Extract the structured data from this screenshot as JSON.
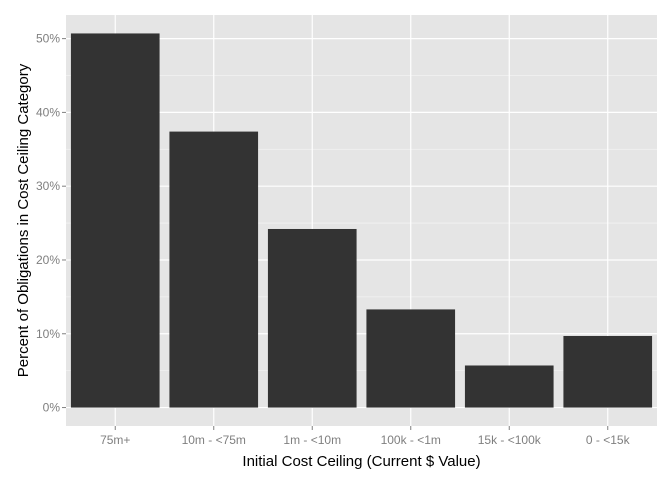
{
  "chart_data": {
    "type": "bar",
    "title": "",
    "xlabel": "Initial Cost Ceiling (Current $ Value)",
    "ylabel": "Percent of Obligations in Cost Ceiling Category",
    "categories": [
      "75m+",
      "10m - <75m",
      "1m - <10m",
      "100k - <1m",
      "15k - <100k",
      "0 - <15k"
    ],
    "values": [
      50.7,
      37.4,
      24.2,
      13.3,
      5.7,
      9.7
    ],
    "ylim": [
      -2.5,
      53.2
    ],
    "yticks": [
      0,
      10,
      20,
      30,
      40,
      50
    ],
    "ytick_labels": [
      "0%",
      "10%",
      "20%",
      "30%",
      "40%",
      "50%"
    ],
    "grid": true,
    "legend": "none",
    "colors": {
      "panel_background": "#e5e5e5",
      "grid_major": "#ffffff",
      "grid_minor": "#f2f2f2",
      "bar_fill": "#333333",
      "tick_text": "#7f7f7f",
      "tick_mark": "#7f7f7f",
      "axis_title": "#000000"
    }
  }
}
